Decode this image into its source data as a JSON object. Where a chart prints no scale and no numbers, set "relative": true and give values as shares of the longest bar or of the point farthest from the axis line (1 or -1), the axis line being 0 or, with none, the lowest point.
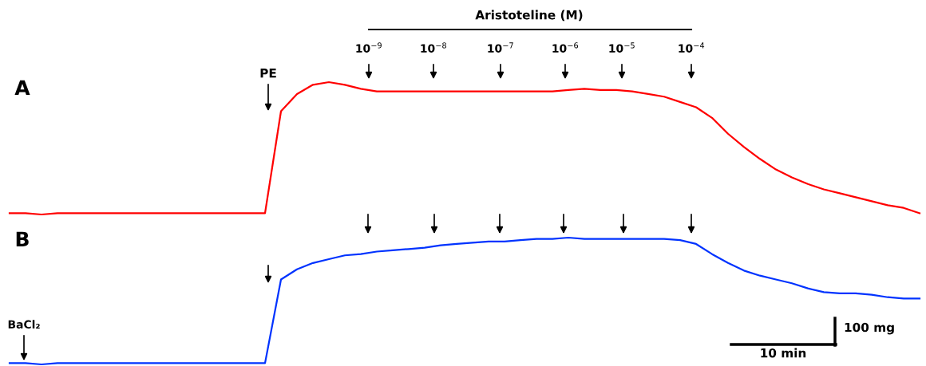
{
  "chart_data": [
    {
      "type": "line",
      "relative": true,
      "categories": [
        null,
        null,
        null,
        null,
        null,
        null,
        null,
        null,
        null,
        null,
        null,
        null,
        null,
        null,
        null,
        null,
        null,
        null,
        null,
        null,
        null,
        null,
        null,
        null,
        null,
        null,
        null,
        null,
        null,
        null,
        null,
        null,
        null,
        null,
        null,
        null,
        null,
        null,
        null,
        null,
        null,
        null,
        null,
        null,
        null,
        null,
        null,
        null,
        null,
        null,
        null,
        null,
        null,
        null,
        null,
        null,
        null,
        null
      ],
      "series": [
        {
          "color": "#ff0000",
          "values": [
            0.01,
            0.01,
            0,
            0.01,
            0.01,
            0.01,
            0.01,
            0.01,
            0.01,
            0.01,
            0.01,
            0.01,
            0.01,
            0.01,
            0.01,
            0.01,
            0.01,
            0.78,
            0.91,
            0.98,
            1,
            0.98,
            0.95,
            0.93,
            0.93,
            0.93,
            0.93,
            0.93,
            0.93,
            0.93,
            0.93,
            0.93,
            0.93,
            0.93,
            0.93,
            0.94,
            0.95,
            0.94,
            0.94,
            0.93,
            0.91,
            0.89,
            0.85,
            0.81,
            0.73,
            0.61,
            0.51,
            0.42,
            0.34,
            0.28,
            0.23,
            0.19,
            0.16,
            0.13,
            0.1,
            0.07,
            0.05,
            0.01
          ]
        }
      ],
      "annotations": [
        "A",
        "PE",
        "Aristoteline (M)",
        "10$^{−9}$",
        "10$^{−8}$",
        "10$^{−7}$",
        "10$^{−6}$",
        "10$^{−5}$",
        "10$^{−4}$"
      ]
    },
    {
      "type": "line",
      "relative": true,
      "categories": [
        null,
        null,
        null,
        null,
        null,
        null,
        null,
        null,
        null,
        null,
        null,
        null,
        null,
        null,
        null,
        null,
        null,
        null,
        null,
        null,
        null,
        null,
        null,
        null,
        null,
        null,
        null,
        null,
        null,
        null,
        null,
        null,
        null,
        null,
        null,
        null,
        null,
        null,
        null,
        null,
        null,
        null,
        null,
        null,
        null,
        null,
        null,
        null,
        null,
        null,
        null,
        null,
        null,
        null,
        null,
        null,
        null,
        null
      ],
      "series": [
        {
          "color": "#0033ff",
          "values": [
            0.01,
            0.01,
            0,
            0.01,
            0.01,
            0.01,
            0.01,
            0.01,
            0.01,
            0.01,
            0.01,
            0.01,
            0.01,
            0.01,
            0.01,
            0.01,
            0.01,
            0.67,
            0.75,
            0.8,
            0.83,
            0.86,
            0.87,
            0.89,
            0.9,
            0.91,
            0.92,
            0.94,
            0.95,
            0.96,
            0.97,
            0.97,
            0.98,
            0.99,
            0.99,
            1,
            0.99,
            0.99,
            0.99,
            0.99,
            0.99,
            0.99,
            0.98,
            0.95,
            0.87,
            0.8,
            0.74,
            0.7,
            0.67,
            0.64,
            0.6,
            0.57,
            0.56,
            0.56,
            0.55,
            0.53,
            0.52,
            0.52
          ]
        }
      ],
      "annotations": [
        "B",
        "BaCl₂",
        "100 mg",
        "10 min"
      ]
    }
  ]
}
